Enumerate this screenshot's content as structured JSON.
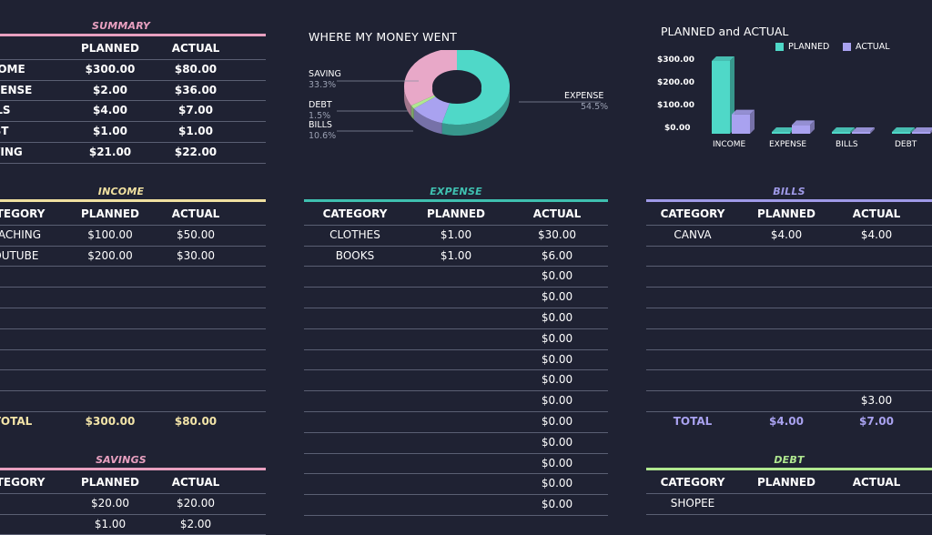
{
  "colors": {
    "background": "#1f2233",
    "summary": "#e8a0c0",
    "income": "#f0e0a0",
    "expense": "#4fd4c4",
    "bills": "#a0a0f0",
    "savings": "#e8a0c0",
    "debt": "#b0e890",
    "planned": "#4fd8c8",
    "actual": "#a9a2f0"
  },
  "summary": {
    "title": "SUMMARY",
    "headers": [
      "",
      "PLANNED",
      "ACTUAL"
    ],
    "rows": [
      {
        "label": "INCOME",
        "planned": "$300.00",
        "actual": "$80.00"
      },
      {
        "label": "EXPENSE",
        "planned": "$2.00",
        "actual": "$36.00"
      },
      {
        "label": "BILLS",
        "planned": "$4.00",
        "actual": "$7.00"
      },
      {
        "label": "DEBT",
        "planned": "$1.00",
        "actual": "$1.00"
      },
      {
        "label": "SAVING",
        "planned": "$21.00",
        "actual": "$22.00"
      }
    ]
  },
  "pie": {
    "title": "WHERE MY MONEY WENT",
    "labels": [
      {
        "name": "SAVING",
        "pct": "33.3%"
      },
      {
        "name": "DEBT",
        "pct": "1.5%"
      },
      {
        "name": "BILLS",
        "pct": "10.6%"
      },
      {
        "name": "EXPENSE",
        "pct": "54.5%"
      }
    ]
  },
  "chart_data": [
    {
      "type": "pie",
      "title": "WHERE MY MONEY WENT",
      "categories": [
        "EXPENSE",
        "BILLS",
        "DEBT",
        "SAVING"
      ],
      "values": [
        54.5,
        10.6,
        1.5,
        33.3
      ],
      "colors": [
        "#4fd8c8",
        "#a9a2f0",
        "#b0e890",
        "#e8a8c8"
      ]
    },
    {
      "type": "bar",
      "title": "PLANNED and ACTUAL",
      "categories": [
        "INCOME",
        "EXPENSE",
        "BILLS",
        "DEBT"
      ],
      "series": [
        {
          "name": "PLANNED",
          "values": [
            300,
            2,
            4,
            1
          ]
        },
        {
          "name": "ACTUAL",
          "values": [
            80,
            36,
            7,
            1
          ]
        }
      ],
      "yticks": [
        "$300.00",
        "$200.00",
        "$100.00",
        "$0.00"
      ],
      "ylim": [
        0,
        300
      ],
      "legend": "top"
    }
  ],
  "income": {
    "title": "INCOME",
    "headers": [
      "CATEGORY",
      "PLANNED",
      "ACTUAL"
    ],
    "rows": [
      [
        "TEACHING",
        "$100.00",
        "$50.00"
      ],
      [
        "YOUTUBE",
        "$200.00",
        "$30.00"
      ],
      [
        "",
        "",
        ""
      ],
      [
        "",
        "",
        ""
      ],
      [
        "",
        "",
        ""
      ],
      [
        "",
        "",
        ""
      ],
      [
        "",
        "",
        ""
      ],
      [
        "",
        "",
        ""
      ],
      [
        "",
        "",
        ""
      ]
    ],
    "total": [
      "TOTAL",
      "$300.00",
      "$80.00"
    ]
  },
  "expense": {
    "title": "EXPENSE",
    "headers": [
      "CATEGORY",
      "PLANNED",
      "ACTUAL"
    ],
    "rows": [
      [
        "CLOTHES",
        "$1.00",
        "$30.00"
      ],
      [
        "BOOKS",
        "$1.00",
        "$6.00"
      ],
      [
        "",
        "",
        "$0.00"
      ],
      [
        "",
        "",
        "$0.00"
      ],
      [
        "",
        "",
        "$0.00"
      ],
      [
        "",
        "",
        "$0.00"
      ],
      [
        "",
        "",
        "$0.00"
      ],
      [
        "",
        "",
        "$0.00"
      ],
      [
        "",
        "",
        "$0.00"
      ],
      [
        "",
        "",
        "$0.00"
      ],
      [
        "",
        "",
        "$0.00"
      ],
      [
        "",
        "",
        "$0.00"
      ],
      [
        "",
        "",
        "$0.00"
      ],
      [
        "",
        "",
        "$0.00"
      ]
    ]
  },
  "bills": {
    "title": "BILLS",
    "headers": [
      "CATEGORY",
      "PLANNED",
      "ACTUAL"
    ],
    "rows": [
      [
        "CANVA",
        "$4.00",
        "$4.00"
      ],
      [
        "",
        "",
        ""
      ],
      [
        "",
        "",
        ""
      ],
      [
        "",
        "",
        ""
      ],
      [
        "",
        "",
        ""
      ],
      [
        "",
        "",
        ""
      ],
      [
        "",
        "",
        ""
      ],
      [
        "",
        "",
        ""
      ],
      [
        "",
        "",
        "$3.00"
      ]
    ],
    "total": [
      "TOTAL",
      "$4.00",
      "$7.00"
    ]
  },
  "savings": {
    "title": "SAVINGS",
    "headers": [
      "CATEGORY",
      "PLANNED",
      "ACTUAL"
    ],
    "rows": [
      [
        "",
        "$20.00",
        "$20.00"
      ],
      [
        "",
        "$1.00",
        "$2.00"
      ]
    ]
  },
  "debt": {
    "title": "DEBT",
    "headers": [
      "CATEGORY",
      "PLANNED",
      "ACTUAL"
    ],
    "rows": [
      [
        "SHOPEE",
        "",
        ""
      ]
    ]
  },
  "barchart": {
    "title": "PLANNED and ACTUAL",
    "legend": [
      "PLANNED",
      "ACTUAL"
    ],
    "yticks": [
      "$300.00",
      "$200.00",
      "$100.00",
      "$0.00"
    ],
    "categories": [
      "INCOME",
      "EXPENSE",
      "BILLS",
      "DEBT"
    ]
  }
}
